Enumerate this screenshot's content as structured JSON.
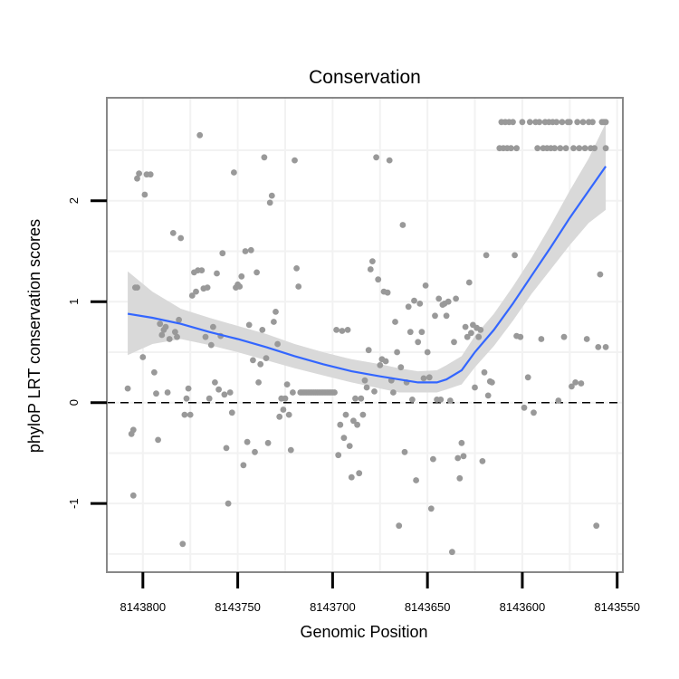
{
  "chart_data": {
    "type": "scatter",
    "title": "Conservation",
    "xlabel": "Genomic Position",
    "ylabel": "phyloP LRT conservation scores",
    "x_reversed": true,
    "xlim": [
      8143819,
      8143547
    ],
    "ylim": [
      -1.68,
      3.02
    ],
    "x_ticks": [
      8143800,
      8143750,
      8143700,
      8143650,
      8143600,
      8143550
    ],
    "x_tick_labels": [
      "8143800",
      "8143750",
      "8143700",
      "8143650",
      "8143600",
      "8143550"
    ],
    "y_ticks": [
      -1,
      0,
      1,
      2
    ],
    "y_tick_labels": [
      "-1",
      "0",
      "1",
      "2"
    ],
    "reference_line": {
      "y": 0,
      "style": "dashed"
    },
    "colors": {
      "points": "#999999",
      "smooth_line": "#3366FF",
      "ribbon": "#D9D9D9",
      "grid": "#F2F2F2",
      "panel_border": "#888888"
    },
    "series": [
      {
        "name": "scores",
        "type": "scatter",
        "points": [
          [
            8143808,
            0.14
          ],
          [
            8143806,
            -0.31
          ],
          [
            8143805,
            -0.27
          ],
          [
            8143805,
            -0.92
          ],
          [
            8143804,
            1.14
          ],
          [
            8143803,
            1.14
          ],
          [
            8143803,
            2.22
          ],
          [
            8143802,
            2.27
          ],
          [
            8143800,
            0.45
          ],
          [
            8143799,
            2.06
          ],
          [
            8143798,
            2.26
          ],
          [
            8143796,
            2.26
          ],
          [
            8143794,
            0.3
          ],
          [
            8143793,
            0.09
          ],
          [
            8143792,
            -0.37
          ],
          [
            8143791,
            0.78
          ],
          [
            8143790,
            0.67
          ],
          [
            8143789,
            0.72
          ],
          [
            8143788,
            0.75
          ],
          [
            8143787,
            0.1
          ],
          [
            8143786,
            0.63
          ],
          [
            8143784,
            1.68
          ],
          [
            8143783,
            0.7
          ],
          [
            8143782,
            0.65
          ],
          [
            8143781,
            0.82
          ],
          [
            8143780,
            1.63
          ],
          [
            8143779,
            -1.4
          ],
          [
            8143778,
            -0.12
          ],
          [
            8143777,
            0.04
          ],
          [
            8143776,
            0.14
          ],
          [
            8143775,
            -0.12
          ],
          [
            8143774,
            1.06
          ],
          [
            8143773,
            1.29
          ],
          [
            8143772,
            1.1
          ],
          [
            8143771,
            1.31
          ],
          [
            8143770,
            2.65
          ],
          [
            8143769,
            1.31
          ],
          [
            8143768,
            1.13
          ],
          [
            8143767,
            0.65
          ],
          [
            8143766,
            1.14
          ],
          [
            8143765,
            0.04
          ],
          [
            8143764,
            0.57
          ],
          [
            8143763,
            0.75
          ],
          [
            8143762,
            0.2
          ],
          [
            8143761,
            1.28
          ],
          [
            8143760,
            0.13
          ],
          [
            8143759,
            0.66
          ],
          [
            8143758,
            1.48
          ],
          [
            8143757,
            0.08
          ],
          [
            8143756,
            -0.45
          ],
          [
            8143755,
            -1.0
          ],
          [
            8143754,
            0.1
          ],
          [
            8143753,
            -0.1
          ],
          [
            8143752,
            2.28
          ],
          [
            8143751,
            1.14
          ],
          [
            8143750,
            1.17
          ],
          [
            8143749,
            1.15
          ],
          [
            8143748,
            1.25
          ],
          [
            8143747,
            -0.62
          ],
          [
            8143746,
            1.5
          ],
          [
            8143745,
            -0.39
          ],
          [
            8143744,
            0.77
          ],
          [
            8143743,
            1.51
          ],
          [
            8143742,
            0.42
          ],
          [
            8143741,
            -0.49
          ],
          [
            8143740,
            1.29
          ],
          [
            8143739,
            0.2
          ],
          [
            8143738,
            0.38
          ],
          [
            8143737,
            0.72
          ],
          [
            8143736,
            2.43
          ],
          [
            8143735,
            0.44
          ],
          [
            8143734,
            -0.4
          ],
          [
            8143733,
            1.98
          ],
          [
            8143732,
            2.05
          ],
          [
            8143731,
            0.8
          ],
          [
            8143730,
            0.9
          ],
          [
            8143729,
            0.58
          ],
          [
            8143728,
            -0.14
          ],
          [
            8143727,
            0.04
          ],
          [
            8143726,
            -0.07
          ],
          [
            8143725,
            0.04
          ],
          [
            8143724,
            0.18
          ],
          [
            8143723,
            -0.12
          ],
          [
            8143722,
            -0.47
          ],
          [
            8143721,
            0.1
          ],
          [
            8143720,
            2.4
          ],
          [
            8143719,
            1.33
          ],
          [
            8143718,
            1.15
          ],
          [
            8143717,
            0.1
          ],
          [
            8143716,
            0.1
          ],
          [
            8143715,
            0.1
          ],
          [
            8143714,
            0.1
          ],
          [
            8143713,
            0.1
          ],
          [
            8143712,
            0.1
          ],
          [
            8143711,
            0.1
          ],
          [
            8143710,
            0.1
          ],
          [
            8143709,
            0.1
          ],
          [
            8143708,
            0.1
          ],
          [
            8143707,
            0.1
          ],
          [
            8143706,
            0.1
          ],
          [
            8143705,
            0.1
          ],
          [
            8143704,
            0.1
          ],
          [
            8143703,
            0.1
          ],
          [
            8143702,
            0.1
          ],
          [
            8143701,
            0.1
          ],
          [
            8143700,
            0.1
          ],
          [
            8143699,
            0.1
          ],
          [
            8143698,
            0.72
          ],
          [
            8143697,
            -0.52
          ],
          [
            8143696,
            -0.22
          ],
          [
            8143695,
            0.71
          ],
          [
            8143694,
            -0.35
          ],
          [
            8143693,
            -0.12
          ],
          [
            8143692,
            0.72
          ],
          [
            8143691,
            -0.43
          ],
          [
            8143690,
            -0.74
          ],
          [
            8143689,
            -0.18
          ],
          [
            8143688,
            0.04
          ],
          [
            8143687,
            -0.22
          ],
          [
            8143686,
            -0.7
          ],
          [
            8143685,
            0.04
          ],
          [
            8143684,
            -0.12
          ],
          [
            8143683,
            0.22
          ],
          [
            8143682,
            0.15
          ],
          [
            8143681,
            0.52
          ],
          [
            8143680,
            1.32
          ],
          [
            8143679,
            1.4
          ],
          [
            8143678,
            0.11
          ],
          [
            8143677,
            2.43
          ],
          [
            8143676,
            1.22
          ],
          [
            8143675,
            0.37
          ],
          [
            8143674,
            0.43
          ],
          [
            8143673,
            1.1
          ],
          [
            8143672,
            0.41
          ],
          [
            8143671,
            1.09
          ],
          [
            8143670,
            2.4
          ],
          [
            8143669,
            0.22
          ],
          [
            8143668,
            0.1
          ],
          [
            8143667,
            0.8
          ],
          [
            8143666,
            0.5
          ],
          [
            8143665,
            -1.22
          ],
          [
            8143664,
            0.35
          ],
          [
            8143663,
            1.76
          ],
          [
            8143662,
            -0.49
          ],
          [
            8143661,
            0.2
          ],
          [
            8143660,
            0.95
          ],
          [
            8143659,
            0.7
          ],
          [
            8143658,
            0.03
          ],
          [
            8143657,
            1.01
          ],
          [
            8143656,
            -0.77
          ],
          [
            8143655,
            0.6
          ],
          [
            8143654,
            0.98
          ],
          [
            8143653,
            0.7
          ],
          [
            8143652,
            0.24
          ],
          [
            8143651,
            1.16
          ],
          [
            8143650,
            0.5
          ],
          [
            8143649,
            0.25
          ],
          [
            8143648,
            -1.05
          ],
          [
            8143647,
            -0.56
          ],
          [
            8143646,
            0.86
          ],
          [
            8143645,
            0.03
          ],
          [
            8143644,
            1.03
          ],
          [
            8143643,
            0.03
          ],
          [
            8143642,
            0.97
          ],
          [
            8143641,
            0.98
          ],
          [
            8143640,
            0.86
          ],
          [
            8143639,
            1.0
          ],
          [
            8143638,
            0.02
          ],
          [
            8143637,
            -1.48
          ],
          [
            8143636,
            0.6
          ],
          [
            8143635,
            1.03
          ],
          [
            8143634,
            -0.55
          ],
          [
            8143633,
            -0.75
          ],
          [
            8143632,
            -0.4
          ],
          [
            8143631,
            -0.53
          ],
          [
            8143630,
            0.75
          ],
          [
            8143629,
            0.65
          ],
          [
            8143628,
            1.19
          ],
          [
            8143627,
            0.69
          ],
          [
            8143626,
            0.77
          ],
          [
            8143625,
            0.15
          ],
          [
            8143624,
            0.74
          ],
          [
            8143623,
            0.65
          ],
          [
            8143622,
            0.72
          ],
          [
            8143621,
            -0.58
          ],
          [
            8143620,
            0.3
          ],
          [
            8143619,
            1.46
          ],
          [
            8143618,
            0.07
          ],
          [
            8143617,
            0.21
          ],
          [
            8143616,
            0.2
          ],
          [
            8143612,
            2.52
          ],
          [
            8143611,
            2.78
          ],
          [
            8143610,
            2.52
          ],
          [
            8143609,
            2.78
          ],
          [
            8143608,
            2.52
          ],
          [
            8143607,
            2.78
          ],
          [
            8143606,
            2.52
          ],
          [
            8143605,
            2.78
          ],
          [
            8143604,
            1.46
          ],
          [
            8143603,
            2.52
          ],
          [
            8143603,
            0.66
          ],
          [
            8143601,
            0.65
          ],
          [
            8143600,
            2.78
          ],
          [
            8143599,
            -0.05
          ],
          [
            8143597,
            0.25
          ],
          [
            8143596,
            2.78
          ],
          [
            8143594,
            -0.1
          ],
          [
            8143593,
            2.78
          ],
          [
            8143592,
            2.52
          ],
          [
            8143591,
            2.78
          ],
          [
            8143590,
            0.63
          ],
          [
            8143589,
            2.52
          ],
          [
            8143588,
            2.78
          ],
          [
            8143587,
            2.52
          ],
          [
            8143586,
            2.78
          ],
          [
            8143585,
            2.52
          ],
          [
            8143584,
            2.78
          ],
          [
            8143583,
            2.52
          ],
          [
            8143582,
            2.78
          ],
          [
            8143581,
            0.02
          ],
          [
            8143580,
            2.52
          ],
          [
            8143579,
            2.78
          ],
          [
            8143578,
            0.65
          ],
          [
            8143577,
            2.52
          ],
          [
            8143576,
            2.78
          ],
          [
            8143575,
            2.78
          ],
          [
            8143574,
            0.16
          ],
          [
            8143573,
            2.52
          ],
          [
            8143572,
            0.2
          ],
          [
            8143571,
            2.78
          ],
          [
            8143570,
            2.52
          ],
          [
            8143569,
            0.19
          ],
          [
            8143568,
            2.78
          ],
          [
            8143567,
            2.52
          ],
          [
            8143566,
            0.63
          ],
          [
            8143565,
            2.78
          ],
          [
            8143564,
            2.52
          ],
          [
            8143563,
            2.78
          ],
          [
            8143562,
            2.52
          ],
          [
            8143561,
            -1.22
          ],
          [
            8143560,
            0.55
          ],
          [
            8143559,
            1.27
          ],
          [
            8143558,
            2.78
          ],
          [
            8143557,
            2.78
          ],
          [
            8143556,
            0.55
          ],
          [
            8143556,
            2.52
          ],
          [
            8143556,
            2.78
          ]
        ]
      },
      {
        "name": "loess fit",
        "type": "line",
        "points": [
          [
            8143808,
            0.88
          ],
          [
            8143795,
            0.84
          ],
          [
            8143780,
            0.78
          ],
          [
            8143765,
            0.7
          ],
          [
            8143750,
            0.63
          ],
          [
            8143735,
            0.55
          ],
          [
            8143720,
            0.46
          ],
          [
            8143705,
            0.38
          ],
          [
            8143690,
            0.31
          ],
          [
            8143675,
            0.26
          ],
          [
            8143665,
            0.23
          ],
          [
            8143655,
            0.2
          ],
          [
            8143645,
            0.2
          ],
          [
            8143640,
            0.23
          ],
          [
            8143632,
            0.32
          ],
          [
            8143625,
            0.5
          ],
          [
            8143615,
            0.72
          ],
          [
            8143605,
            0.98
          ],
          [
            8143595,
            1.26
          ],
          [
            8143585,
            1.54
          ],
          [
            8143575,
            1.83
          ],
          [
            8143565,
            2.1
          ],
          [
            8143556,
            2.34
          ]
        ]
      }
    ],
    "confidence_band": {
      "x": [
        8143808,
        8143795,
        8143780,
        8143765,
        8143750,
        8143735,
        8143720,
        8143705,
        8143690,
        8143675,
        8143665,
        8143655,
        8143645,
        8143640,
        8143632,
        8143625,
        8143615,
        8143605,
        8143595,
        8143585,
        8143575,
        8143565,
        8143556
      ],
      "upper": [
        1.3,
        1.1,
        0.93,
        0.84,
        0.76,
        0.68,
        0.58,
        0.5,
        0.43,
        0.38,
        0.34,
        0.31,
        0.32,
        0.37,
        0.46,
        0.66,
        0.88,
        1.15,
        1.44,
        1.76,
        2.1,
        2.42,
        2.77
      ],
      "lower": [
        0.47,
        0.58,
        0.63,
        0.57,
        0.5,
        0.42,
        0.34,
        0.27,
        0.2,
        0.14,
        0.1,
        0.1,
        0.1,
        0.13,
        0.18,
        0.35,
        0.56,
        0.81,
        1.08,
        1.32,
        1.56,
        1.78,
        1.91
      ]
    }
  }
}
